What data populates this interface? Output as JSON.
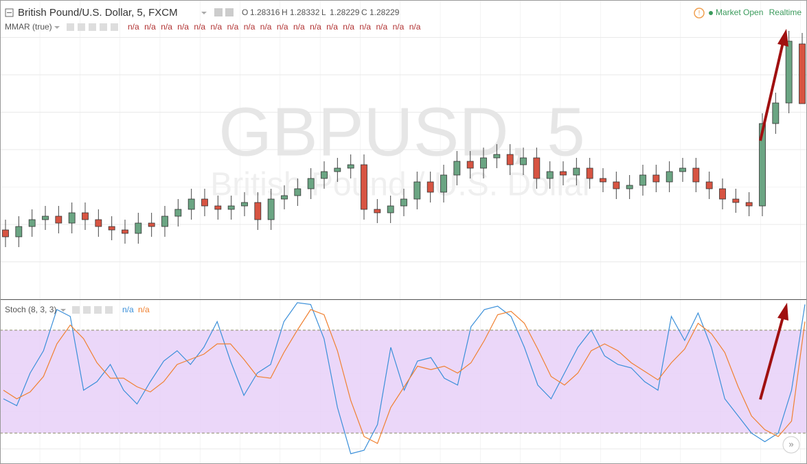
{
  "header": {
    "title": "British Pound/U.S. Dollar, 5, FXCM",
    "ohlc_labels": [
      "O",
      "H",
      "L",
      "C"
    ],
    "status": "Market Open",
    "mode": "Realtime"
  },
  "chart_data": [
    {
      "type": "candlestick",
      "name": "MMAR (true)",
      "readouts": [
        "n/a",
        "n/a",
        "n/a",
        "n/a",
        "n/a",
        "n/a",
        "n/a",
        "n/a",
        "n/a",
        "n/a",
        "n/a",
        "n/a",
        "n/a",
        "n/a",
        "n/a",
        "n/a",
        "n/a",
        "n/a"
      ],
      "watermark": "GBPUSD, 5",
      "watermark_subtitle": "British Pound / U.S. Dollar",
      "up_color": "#6ba583",
      "down_color": "#d75442",
      "ylim": [
        1.27944,
        1.2838
      ],
      "open": [
        1.28045,
        1.28035,
        1.2805,
        1.2806,
        1.28065,
        1.28055,
        1.2807,
        1.2806,
        1.2805,
        1.28045,
        1.2804,
        1.28055,
        1.2805,
        1.28065,
        1.28075,
        1.2809,
        1.2808,
        1.28075,
        1.2808,
        1.28085,
        1.2806,
        1.2809,
        1.28095,
        1.28105,
        1.2812,
        1.2813,
        1.28135,
        1.2814,
        1.28075,
        1.2807,
        1.2808,
        1.2809,
        1.28115,
        1.281,
        1.28125,
        1.28145,
        1.28135,
        1.2815,
        1.28155,
        1.2814,
        1.2815,
        1.2812,
        1.2813,
        1.28125,
        1.28135,
        1.2812,
        1.28115,
        1.28105,
        1.2811,
        1.28125,
        1.28115,
        1.2813,
        1.28135,
        1.28115,
        1.28105,
        1.2809,
        1.28085,
        1.2808,
        1.282,
        1.2823,
        1.28316
      ],
      "high": [
        1.2806,
        1.28065,
        1.28075,
        1.2808,
        1.2808,
        1.28085,
        1.28085,
        1.28075,
        1.28065,
        1.2806,
        1.2807,
        1.2807,
        1.2808,
        1.2809,
        1.28105,
        1.28105,
        1.28095,
        1.28095,
        1.281,
        1.281,
        1.28105,
        1.2811,
        1.2812,
        1.28135,
        1.28145,
        1.2815,
        1.28155,
        1.28155,
        1.2809,
        1.28095,
        1.28105,
        1.2813,
        1.2813,
        1.2814,
        1.2816,
        1.2816,
        1.28165,
        1.2817,
        1.2817,
        1.28165,
        1.28165,
        1.28145,
        1.28145,
        1.2815,
        1.2815,
        1.28135,
        1.2813,
        1.28125,
        1.2814,
        1.2814,
        1.28145,
        1.2815,
        1.2815,
        1.2813,
        1.2812,
        1.28105,
        1.281,
        1.28215,
        1.28245,
        1.28335,
        1.28332
      ],
      "low": [
        1.2802,
        1.2802,
        1.28035,
        1.28045,
        1.2804,
        1.2804,
        1.28045,
        1.28035,
        1.2803,
        1.28025,
        1.28025,
        1.28035,
        1.28035,
        1.2805,
        1.2806,
        1.28065,
        1.2806,
        1.2806,
        1.28065,
        1.28045,
        1.28045,
        1.28075,
        1.2808,
        1.2809,
        1.28105,
        1.28115,
        1.2812,
        1.2806,
        1.28055,
        1.28055,
        1.28065,
        1.28075,
        1.28085,
        1.28085,
        1.2811,
        1.2812,
        1.2812,
        1.28135,
        1.28125,
        1.28125,
        1.28105,
        1.28105,
        1.2811,
        1.2811,
        1.28105,
        1.281,
        1.2809,
        1.2809,
        1.28095,
        1.281,
        1.281,
        1.28115,
        1.281,
        1.2809,
        1.28075,
        1.2807,
        1.28065,
        1.28065,
        1.28185,
        1.28215,
        1.28229
      ],
      "close": [
        1.28035,
        1.2805,
        1.2806,
        1.28065,
        1.28055,
        1.2807,
        1.2806,
        1.2805,
        1.28045,
        1.2804,
        1.28055,
        1.2805,
        1.28065,
        1.28075,
        1.2809,
        1.2808,
        1.28075,
        1.2808,
        1.28085,
        1.2806,
        1.2809,
        1.28095,
        1.28105,
        1.2812,
        1.2813,
        1.28135,
        1.2814,
        1.28075,
        1.2807,
        1.2808,
        1.2809,
        1.28115,
        1.281,
        1.28125,
        1.28145,
        1.28135,
        1.2815,
        1.28155,
        1.2814,
        1.2815,
        1.2812,
        1.2813,
        1.28125,
        1.28135,
        1.2812,
        1.28115,
        1.28105,
        1.2811,
        1.28125,
        1.28115,
        1.2813,
        1.28135,
        1.28115,
        1.28105,
        1.2809,
        1.28085,
        1.2808,
        1.282,
        1.2823,
        1.2832,
        1.28229
      ]
    },
    {
      "type": "line",
      "name": "Stoch (8, 3, 3)",
      "ylim": [
        2,
        98
      ],
      "levels": [
        20,
        80
      ],
      "band_color": "#e8d0f8",
      "series": [
        {
          "name": "n/a",
          "color": "#3a8fd9",
          "values": [
            40,
            36,
            55,
            68,
            92,
            88,
            45,
            50,
            60,
            45,
            37,
            50,
            62,
            68,
            60,
            70,
            85,
            62,
            42,
            55,
            60,
            85,
            96,
            95,
            75,
            35,
            8,
            10,
            25,
            70,
            45,
            62,
            64,
            52,
            48,
            82,
            92,
            94,
            88,
            70,
            48,
            40,
            55,
            70,
            80,
            65,
            60,
            58,
            50,
            45,
            88,
            74,
            90,
            70,
            40,
            30,
            20,
            15,
            20,
            45,
            95
          ]
        },
        {
          "name": "n/a",
          "color": "#f08030",
          "values": [
            45,
            40,
            44,
            53,
            72,
            83,
            75,
            61,
            52,
            52,
            47,
            44,
            50,
            60,
            63,
            66,
            72,
            72,
            63,
            53,
            52,
            67,
            80,
            92,
            89,
            68,
            39,
            18,
            14,
            35,
            47,
            59,
            57,
            59,
            55,
            61,
            74,
            89,
            91,
            84,
            69,
            53,
            48,
            55,
            68,
            72,
            68,
            61,
            56,
            51,
            61,
            69,
            84,
            78,
            67,
            47,
            30,
            22,
            18,
            27,
            85
          ]
        }
      ]
    }
  ]
}
